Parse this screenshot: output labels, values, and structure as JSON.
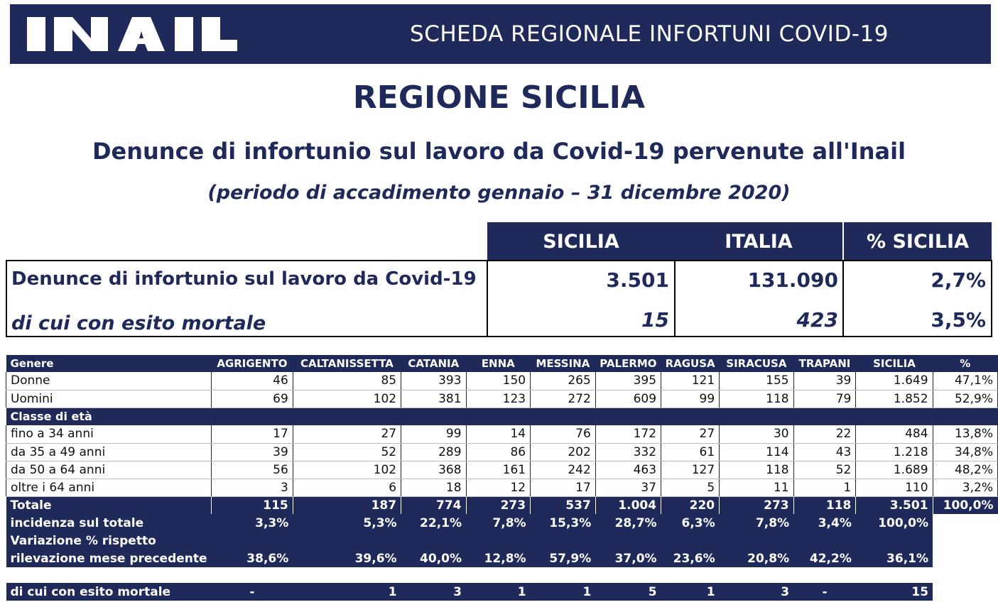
{
  "header": {
    "logo_text": "INAIL",
    "title": "SCHEDA REGIONALE INFORTUNI COVID-19"
  },
  "region_title": "REGIONE SICILIA",
  "subtitle": "Denunce di infortunio sul lavoro da Covid-19 pervenute all'Inail",
  "period": "(periodo di accadimento gennaio – 31 dicembre 2020)",
  "summary": {
    "columns": [
      "SICILIA",
      "ITALIA",
      "% SICILIA"
    ],
    "rows": [
      {
        "label": "Denunce di infortunio sul lavoro da Covid-19",
        "values": [
          "3.501",
          "131.090",
          "2,7%"
        ]
      },
      {
        "label": "di cui con esito mortale",
        "values": [
          "15",
          "423",
          "3,5%"
        ]
      }
    ]
  },
  "detail": {
    "header": [
      "Genere",
      "AGRIGENTO",
      "CALTANISSETTA",
      "CATANIA",
      "ENNA",
      "MESSINA",
      "PALERMO",
      "RAGUSA",
      "SIRACUSA",
      "TRAPANI",
      "SICILIA",
      "%"
    ],
    "gender_rows": [
      [
        "Donne",
        "46",
        "85",
        "393",
        "150",
        "265",
        "395",
        "121",
        "155",
        "39",
        "1.649",
        "47,1%"
      ],
      [
        "Uomini",
        "69",
        "102",
        "381",
        "123",
        "272",
        "609",
        "99",
        "118",
        "79",
        "1.852",
        "52,9%"
      ]
    ],
    "age_section": "Classe di età",
    "age_rows": [
      [
        "fino a 34 anni",
        "17",
        "27",
        "99",
        "14",
        "76",
        "172",
        "27",
        "30",
        "22",
        "484",
        "13,8%"
      ],
      [
        "da 35 a 49 anni",
        "39",
        "52",
        "289",
        "86",
        "202",
        "332",
        "61",
        "114",
        "43",
        "1.218",
        "34,8%"
      ],
      [
        "da 50 a 64 anni",
        "56",
        "102",
        "368",
        "161",
        "242",
        "463",
        "127",
        "118",
        "52",
        "1.689",
        "48,2%"
      ],
      [
        "oltre i 64 anni",
        "3",
        "6",
        "18",
        "12",
        "17",
        "37",
        "5",
        "11",
        "1",
        "110",
        "3,2%"
      ]
    ],
    "total_row": [
      "Totale",
      "115",
      "187",
      "774",
      "273",
      "537",
      "1.004",
      "220",
      "273",
      "118",
      "3.501",
      "100,0%"
    ],
    "incidence_row": [
      "incidenza sul totale",
      "3,3%",
      "5,3%",
      "22,1%",
      "7,8%",
      "15,3%",
      "28,7%",
      "6,3%",
      "7,8%",
      "3,4%",
      "100,0%"
    ],
    "variation_label_1": "Variazione % rispetto",
    "variation_row": [
      "rilevazione mese precedente",
      "38,6%",
      "39,6%",
      "40,0%",
      "12,8%",
      "57,9%",
      "37,0%",
      "23,6%",
      "20,8%",
      "42,2%",
      "36,1%"
    ],
    "deaths_row": [
      "di cui con esito mortale",
      "-",
      "1",
      "3",
      "1",
      "1",
      "5",
      "1",
      "3",
      "-",
      "15"
    ]
  }
}
